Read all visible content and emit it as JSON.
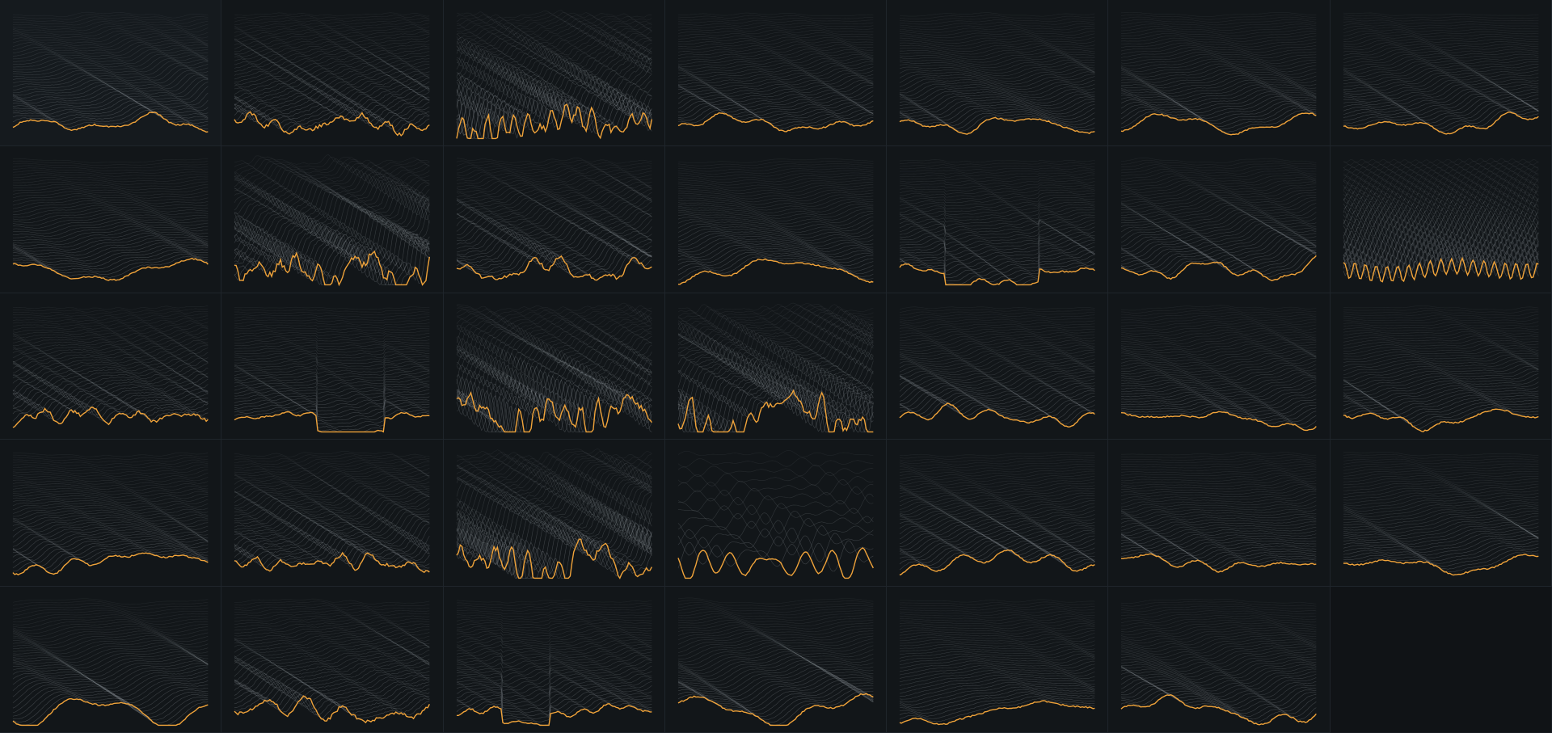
{
  "colors": {
    "background": "#101316",
    "tile_background": "#121619",
    "border": "#1f252b",
    "gray_line": "#8f969c",
    "highlight_line": "#f0a33a"
  },
  "grid": {
    "columns": 7,
    "rows": 5
  },
  "tiles": [
    {
      "style": "smooth",
      "lines": 44,
      "seed": 11
    },
    {
      "style": "mixed",
      "lines": 44,
      "seed": 12
    },
    {
      "style": "chaotic",
      "lines": 44,
      "seed": 13
    },
    {
      "style": "smooth",
      "lines": 44,
      "seed": 14
    },
    {
      "style": "smooth",
      "lines": 44,
      "seed": 15
    },
    {
      "style": "wavy",
      "lines": 44,
      "seed": 16
    },
    {
      "style": "smooth",
      "lines": 44,
      "seed": 17
    },
    {
      "style": "wavy",
      "lines": 44,
      "seed": 21
    },
    {
      "style": "chaotic",
      "lines": 44,
      "seed": 22
    },
    {
      "style": "mixed",
      "lines": 44,
      "seed": 23
    },
    {
      "style": "wavy",
      "lines": 44,
      "seed": 24
    },
    {
      "style": "step",
      "lines": 44,
      "seed": 25
    },
    {
      "style": "smooth",
      "lines": 44,
      "seed": 26
    },
    {
      "style": "oscillating",
      "lines": 44,
      "seed": 27
    },
    {
      "style": "mixed",
      "lines": 44,
      "seed": 31
    },
    {
      "style": "step",
      "lines": 44,
      "seed": 32
    },
    {
      "style": "chaotic",
      "lines": 44,
      "seed": 33
    },
    {
      "style": "chaotic",
      "lines": 44,
      "seed": 34
    },
    {
      "style": "smooth",
      "lines": 44,
      "seed": 35
    },
    {
      "style": "smooth",
      "lines": 44,
      "seed": 36
    },
    {
      "style": "smooth",
      "lines": 44,
      "seed": 37
    },
    {
      "style": "smooth",
      "lines": 44,
      "seed": 41
    },
    {
      "style": "mixed",
      "lines": 44,
      "seed": 42
    },
    {
      "style": "chaotic",
      "lines": 44,
      "seed": 43
    },
    {
      "style": "sparse",
      "lines": 14,
      "seed": 44
    },
    {
      "style": "smooth",
      "lines": 44,
      "seed": 45
    },
    {
      "style": "smooth",
      "lines": 44,
      "seed": 46
    },
    {
      "style": "smooth",
      "lines": 44,
      "seed": 47
    },
    {
      "style": "wavy",
      "lines": 44,
      "seed": 51
    },
    {
      "style": "mixed",
      "lines": 44,
      "seed": 52
    },
    {
      "style": "step",
      "lines": 44,
      "seed": 53
    },
    {
      "style": "wavy",
      "lines": 44,
      "seed": 54
    },
    {
      "style": "smooth",
      "lines": 44,
      "seed": 55
    },
    {
      "style": "smooth",
      "lines": 44,
      "seed": 56
    }
  ]
}
